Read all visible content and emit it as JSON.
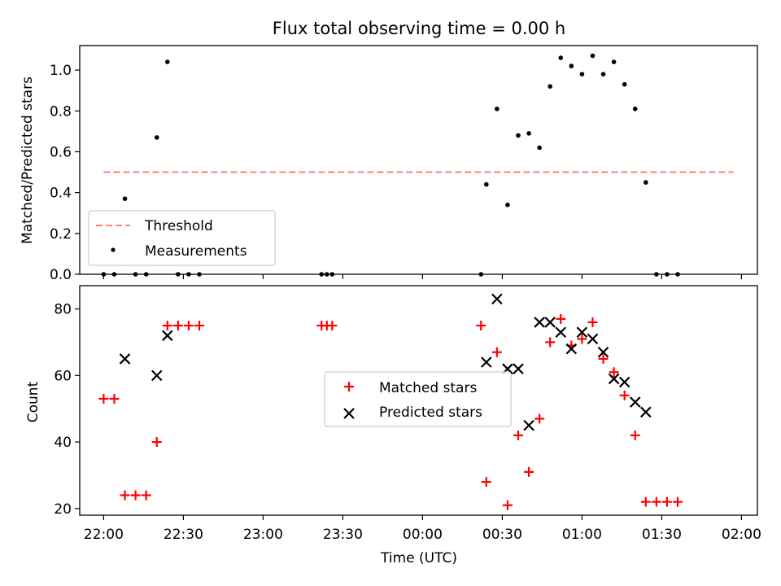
{
  "chart_data": [
    {
      "type": "scatter",
      "title": "Flux total observing time = 0.00 h",
      "ylabel": "Matched/Predicted stars",
      "xlabel": "",
      "ylim": [
        0,
        1.12
      ],
      "yticks": [
        0.0,
        0.2,
        0.4,
        0.6,
        0.8,
        1.0
      ],
      "ytick_labels": [
        "0.0",
        "0.2",
        "0.4",
        "0.6",
        "0.8",
        "1.0"
      ],
      "legend_position": "lower-left",
      "threshold": {
        "name": "Threshold",
        "value": 0.5,
        "x_range": [
          "22:00",
          "01:57"
        ],
        "color": "#ff7f7f",
        "style": "dashed"
      },
      "series": [
        {
          "name": "Measurements",
          "marker": "dot",
          "color": "#000000",
          "points": [
            [
              "22:00",
              0.0
            ],
            [
              "22:04",
              0.0
            ],
            [
              "22:08",
              0.37
            ],
            [
              "22:12",
              0.0
            ],
            [
              "22:16",
              0.0
            ],
            [
              "22:20",
              0.67
            ],
            [
              "22:24",
              1.04
            ],
            [
              "22:28",
              0.0
            ],
            [
              "22:32",
              0.0
            ],
            [
              "22:36",
              0.0
            ],
            [
              "23:22",
              0.0
            ],
            [
              "23:24",
              0.0
            ],
            [
              "23:26",
              0.0
            ],
            [
              "00:22",
              0.0
            ],
            [
              "00:24",
              0.44
            ],
            [
              "00:28",
              0.81
            ],
            [
              "00:32",
              0.34
            ],
            [
              "00:36",
              0.68
            ],
            [
              "00:40",
              0.69
            ],
            [
              "00:44",
              0.62
            ],
            [
              "00:48",
              0.92
            ],
            [
              "00:52",
              1.06
            ],
            [
              "00:56",
              1.02
            ],
            [
              "01:00",
              0.98
            ],
            [
              "01:04",
              1.07
            ],
            [
              "01:08",
              0.98
            ],
            [
              "01:12",
              1.04
            ],
            [
              "01:16",
              0.93
            ],
            [
              "01:20",
              0.81
            ],
            [
              "01:24",
              0.45
            ],
            [
              "01:28",
              0.0
            ],
            [
              "01:32",
              0.0
            ],
            [
              "01:36",
              0.0
            ]
          ]
        }
      ]
    },
    {
      "type": "scatter",
      "title": "",
      "ylabel": "Count",
      "xlabel": "Time (UTC)",
      "ylim": [
        18,
        87
      ],
      "yticks": [
        20,
        40,
        60,
        80
      ],
      "ytick_labels": [
        "20",
        "40",
        "60",
        "80"
      ],
      "x_range": [
        "21:51",
        "02:06"
      ],
      "xticks": [
        "22:00",
        "22:30",
        "23:00",
        "23:30",
        "00:00",
        "00:30",
        "01:00",
        "01:30",
        "02:00"
      ],
      "legend_position": "center",
      "series": [
        {
          "name": "Matched stars",
          "marker": "plus",
          "color": "#ff0000",
          "points": [
            [
              "22:00",
              53
            ],
            [
              "22:04",
              53
            ],
            [
              "22:08",
              24
            ],
            [
              "22:12",
              24
            ],
            [
              "22:16",
              24
            ],
            [
              "22:20",
              40
            ],
            [
              "22:24",
              75
            ],
            [
              "22:28",
              75
            ],
            [
              "22:32",
              75
            ],
            [
              "22:36",
              75
            ],
            [
              "23:22",
              75
            ],
            [
              "23:24",
              75
            ],
            [
              "23:26",
              75
            ],
            [
              "00:22",
              75
            ],
            [
              "00:24",
              28
            ],
            [
              "00:28",
              67
            ],
            [
              "00:32",
              21
            ],
            [
              "00:36",
              42
            ],
            [
              "00:40",
              31
            ],
            [
              "00:44",
              47
            ],
            [
              "00:48",
              70
            ],
            [
              "00:52",
              77
            ],
            [
              "00:56",
              69
            ],
            [
              "01:00",
              71
            ],
            [
              "01:04",
              76
            ],
            [
              "01:08",
              65
            ],
            [
              "01:12",
              61
            ],
            [
              "01:16",
              54
            ],
            [
              "01:20",
              42
            ],
            [
              "01:24",
              22
            ],
            [
              "01:28",
              22
            ],
            [
              "01:32",
              22
            ],
            [
              "01:36",
              22
            ]
          ]
        },
        {
          "name": "Predicted stars",
          "marker": "x",
          "color": "#000000",
          "points": [
            [
              "22:08",
              65
            ],
            [
              "22:20",
              60
            ],
            [
              "22:24",
              72
            ],
            [
              "00:24",
              64
            ],
            [
              "00:28",
              83
            ],
            [
              "00:32",
              62
            ],
            [
              "00:36",
              62
            ],
            [
              "00:40",
              45
            ],
            [
              "00:44",
              76
            ],
            [
              "00:48",
              76
            ],
            [
              "00:52",
              73
            ],
            [
              "00:56",
              68
            ],
            [
              "01:00",
              73
            ],
            [
              "01:04",
              71
            ],
            [
              "01:08",
              67
            ],
            [
              "01:12",
              59
            ],
            [
              "01:16",
              58
            ],
            [
              "01:20",
              52
            ],
            [
              "01:24",
              49
            ]
          ]
        }
      ]
    }
  ]
}
